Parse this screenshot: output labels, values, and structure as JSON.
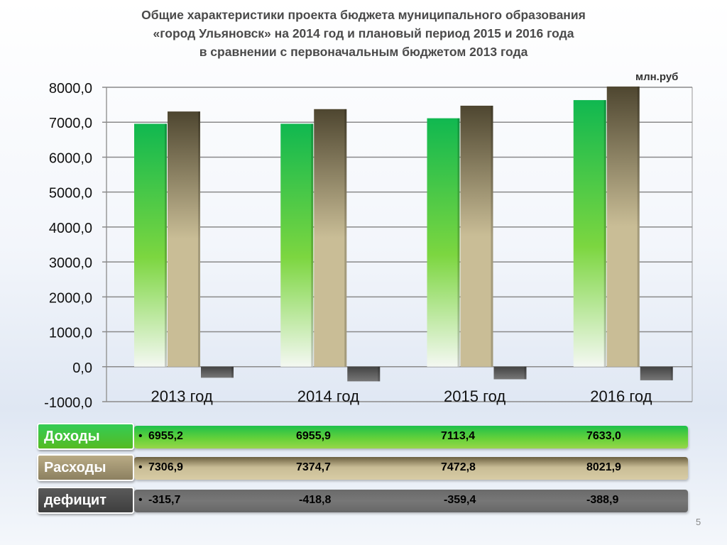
{
  "title_lines": [
    "Общие характеристики проекта бюджета муниципального образования",
    "«город Ульяновск» на 2014 год и плановый период 2015 и 2016 года",
    "в сравнении с первоначальным бюджетом 2013 года"
  ],
  "unit": "млн.руб",
  "chart_data": {
    "type": "bar",
    "categories": [
      "2013 год",
      "2014 год",
      "2015 год",
      "2016 год"
    ],
    "series": [
      {
        "name": "Доходы",
        "values": [
          6955.2,
          6955.9,
          7113.4,
          7633.0
        ],
        "color": "#22c050"
      },
      {
        "name": "Расходы",
        "values": [
          7306.9,
          7374.7,
          7472.8,
          8021.9
        ],
        "color": "#c8bc95"
      },
      {
        "name": "дефицит",
        "values": [
          -315.7,
          -418.8,
          -359.4,
          -388.9
        ],
        "color": "#5e5e5e"
      }
    ],
    "ylim": [
      -1000,
      8000
    ],
    "yticks": [
      -1000,
      0,
      1000,
      2000,
      3000,
      4000,
      5000,
      6000,
      7000,
      8000
    ],
    "ytick_labels": [
      "-1000,0",
      "0,0",
      "1000,0",
      "2000,0",
      "3000,0",
      "4000,0",
      "5000,0",
      "6000,0",
      "7000,0",
      "8000,0"
    ],
    "grid": true,
    "xlabel": "",
    "ylabel": ""
  },
  "table": {
    "rows": [
      {
        "label": "Доходы",
        "values": [
          "6955,2",
          "6955,9",
          "7113,4",
          "7633,0"
        ]
      },
      {
        "label": "Расходы",
        "values": [
          "7306,9",
          "7374,7",
          "7472,8",
          "8021,9"
        ]
      },
      {
        "label": "дефицит",
        "values": [
          "-315,7",
          "-418,8",
          "-359,4",
          "-388,9"
        ]
      }
    ],
    "bullet": "•"
  },
  "page_number": "5"
}
